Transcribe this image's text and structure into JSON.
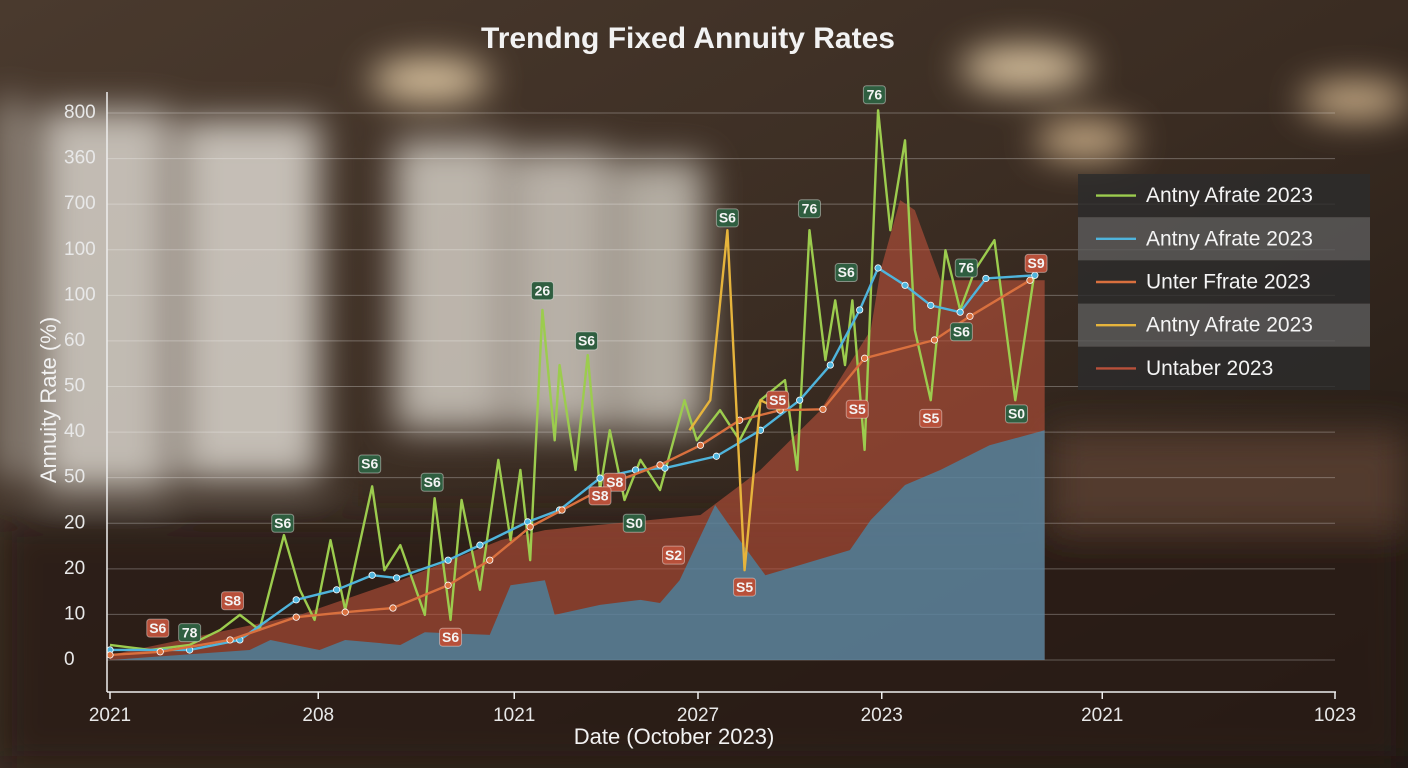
{
  "chart_data": {
    "type": "line",
    "title": "Trendng Fixed Annuity Rates",
    "x_label": "Date (October 2023)",
    "y_label": "Annuity Rate (%)",
    "xlim": [
      0,
      100
    ],
    "xticks": [
      {
        "value": 0,
        "label": "2021"
      },
      {
        "value": 17,
        "label": "208"
      },
      {
        "value": 33,
        "label": "1021"
      },
      {
        "value": 48,
        "label": "2027"
      },
      {
        "value": 63,
        "label": "2023"
      },
      {
        "value": 81,
        "label": "2021"
      },
      {
        "value": 100,
        "label": "1023"
      }
    ],
    "ylim": [
      0,
      12
    ],
    "yticks": [
      {
        "value": 0,
        "label": "0"
      },
      {
        "value": 1,
        "label": "10"
      },
      {
        "value": 2,
        "label": "20"
      },
      {
        "value": 3,
        "label": "20"
      },
      {
        "value": 4,
        "label": "50"
      },
      {
        "value": 5,
        "label": "40"
      },
      {
        "value": 6,
        "label": "50"
      },
      {
        "value": 7,
        "label": "60"
      },
      {
        "value": 8,
        "label": "100"
      },
      {
        "value": 9,
        "label": "100"
      },
      {
        "value": 10,
        "label": "700"
      },
      {
        "value": 11,
        "label": "360"
      },
      {
        "value": 12,
        "label": "800"
      }
    ],
    "grid": true,
    "legend": "upper right",
    "series": [
      {
        "name": "Antny Afrate 2023",
        "color": "#9ccc4e",
        "type": "line",
        "x": [
          0,
          3.3,
          6.5,
          9.0,
          10.6,
          12.2,
          14.2,
          15.5,
          16.7,
          18.0,
          19.2,
          21.4,
          22.4,
          23.7,
          25.7,
          26.5,
          27.8,
          28.7,
          30.2,
          31.7,
          32.7,
          33.5,
          34.3,
          35.3,
          36.3,
          36.7,
          38.0,
          39.0,
          40.0,
          40.8,
          42.0,
          43.3,
          44.9,
          46.9,
          47.9,
          49.8,
          51.4,
          53.1,
          55.1,
          56.1,
          57.1,
          58.4,
          59.2,
          60.0,
          60.6,
          61.6,
          62.7,
          63.7,
          64.9,
          65.7,
          67.0,
          68.2,
          69.4,
          70.6,
          72.2,
          73.9,
          75.5
        ],
        "values": [
          0.33,
          0.22,
          0.33,
          0.66,
          0.99,
          0.66,
          2.74,
          1.54,
          0.88,
          2.63,
          1.1,
          3.81,
          1.97,
          2.52,
          0.99,
          3.55,
          0.88,
          3.51,
          1.54,
          4.39,
          2.63,
          4.17,
          2.19,
          7.68,
          4.82,
          6.47,
          4.17,
          6.69,
          3.73,
          5.04,
          3.51,
          4.39,
          3.73,
          5.7,
          4.82,
          5.48,
          4.82,
          5.7,
          6.14,
          4.17,
          9.43,
          6.58,
          7.89,
          6.47,
          7.89,
          4.61,
          12.06,
          9.43,
          11.4,
          7.24,
          5.7,
          8.99,
          7.68,
          8.55,
          9.21,
          5.7,
          8.55
        ]
      },
      {
        "name": "Antny Afrate 2023",
        "color": "#4fb4dc",
        "type": "line",
        "markers": true,
        "x": [
          0,
          6.5,
          10.6,
          15.2,
          18.5,
          21.4,
          23.4,
          27.6,
          30.2,
          34.1,
          36.7,
          40.0,
          42.9,
          45.3,
          49.5,
          53.1,
          56.3,
          58.8,
          61.2,
          62.7,
          64.9,
          67.0,
          69.4,
          71.5,
          75.5
        ],
        "values": [
          0.22,
          0.22,
          0.44,
          1.32,
          1.54,
          1.86,
          1.8,
          2.19,
          2.52,
          3.03,
          3.29,
          3.99,
          4.17,
          4.21,
          4.47,
          5.04,
          5.7,
          6.47,
          7.68,
          8.6,
          8.22,
          7.78,
          7.63,
          8.37,
          8.44
        ]
      },
      {
        "name": "Unter Ffrate 2023",
        "color": "#d9703e",
        "type": "line",
        "markers": true,
        "x": [
          0,
          4.1,
          9.8,
          15.2,
          19.2,
          23.1,
          27.6,
          31.0,
          34.3,
          36.9,
          40.0,
          41.6,
          44.9,
          48.2,
          51.4,
          54.7,
          58.2,
          61.6,
          67.3,
          70.2,
          75.1
        ],
        "values": [
          0.11,
          0.18,
          0.44,
          0.94,
          1.05,
          1.14,
          1.64,
          2.19,
          2.92,
          3.29,
          3.73,
          3.95,
          4.28,
          4.71,
          5.26,
          5.48,
          5.5,
          6.62,
          7.02,
          7.54,
          8.33
        ]
      },
      {
        "name": "Antny Afrate 2023",
        "color": "#e6b43c",
        "type": "line",
        "x": [
          47.3,
          49.0,
          50.4,
          51.8,
          53.1,
          54.7
        ],
        "values": [
          5.04,
          5.7,
          9.43,
          1.97,
          5.7,
          5.48
        ]
      },
      {
        "name": "Untaber 2023",
        "color": "#b8503a",
        "type": "area",
        "x": [
          0,
          15.5,
          23.7,
          31.9,
          35.5,
          44.1,
          48.2,
          53.1,
          58.0,
          62.1,
          62.9,
          64.5,
          65.7,
          67.8,
          72.7,
          76.3
        ],
        "values": [
          0.11,
          0.99,
          1.75,
          2.63,
          2.85,
          3.07,
          3.18,
          4.17,
          5.48,
          7.24,
          8.55,
          10.09,
          9.87,
          8.33,
          8.33,
          8.33
        ]
      },
      {
        "color": "#3a98c4",
        "type": "area",
        "x": [
          0,
          11.4,
          13.1,
          17.1,
          19.2,
          23.7,
          25.7,
          31.0,
          32.7,
          35.5,
          36.3,
          40.0,
          43.3,
          44.9,
          46.5,
          49.4,
          51.4,
          53.5,
          56.3,
          60.4,
          62.1,
          64.9,
          67.8,
          71.8,
          76.3
        ],
        "values": [
          0,
          0.22,
          0.44,
          0.22,
          0.44,
          0.33,
          0.61,
          0.55,
          1.64,
          1.75,
          0.99,
          1.21,
          1.32,
          1.25,
          1.75,
          3.4,
          2.63,
          1.86,
          2.08,
          2.41,
          3.07,
          3.84,
          4.17,
          4.71,
          5.04
        ]
      }
    ],
    "annotations": [
      {
        "text": "76",
        "x": 62.4,
        "y": 12.4,
        "color": "#2f5e40"
      },
      {
        "text": "S6",
        "x": 50.4,
        "y": 9.7,
        "color": "#2f5e40"
      },
      {
        "text": "76",
        "x": 57.1,
        "y": 9.9,
        "color": "#2f5e40"
      },
      {
        "text": "26",
        "x": 35.3,
        "y": 8.1,
        "color": "#2f5e40"
      },
      {
        "text": "S6",
        "x": 38.9,
        "y": 7.0,
        "color": "#2f5e40"
      },
      {
        "text": "S6",
        "x": 60.1,
        "y": 8.5,
        "color": "#2f5e40"
      },
      {
        "text": "76",
        "x": 69.9,
        "y": 8.6,
        "color": "#2f5e40"
      },
      {
        "text": "S9",
        "x": 75.6,
        "y": 8.7,
        "color": "#b8503a"
      },
      {
        "text": "S6",
        "x": 69.5,
        "y": 7.2,
        "color": "#2f5e40"
      },
      {
        "text": "S0",
        "x": 74.0,
        "y": 5.4,
        "color": "#2f5e40"
      },
      {
        "text": "S5",
        "x": 67.0,
        "y": 5.3,
        "color": "#b8503a"
      },
      {
        "text": "S5",
        "x": 61.0,
        "y": 5.5,
        "color": "#b8503a"
      },
      {
        "text": "S5",
        "x": 54.5,
        "y": 5.7,
        "color": "#b8503a"
      },
      {
        "text": "S8",
        "x": 41.2,
        "y": 3.9,
        "color": "#b8503a"
      },
      {
        "text": "S8",
        "x": 40.0,
        "y": 3.6,
        "color": "#b8503a"
      },
      {
        "text": "S0",
        "x": 42.8,
        "y": 3.0,
        "color": "#2f5e40"
      },
      {
        "text": "S2",
        "x": 46.0,
        "y": 2.3,
        "color": "#b8503a"
      },
      {
        "text": "S5",
        "x": 51.8,
        "y": 1.6,
        "color": "#b8503a"
      },
      {
        "text": "S6",
        "x": 21.2,
        "y": 4.3,
        "color": "#2f5e40"
      },
      {
        "text": "S6",
        "x": 26.3,
        "y": 3.9,
        "color": "#2f5e40"
      },
      {
        "text": "S6",
        "x": 14.1,
        "y": 3.0,
        "color": "#2f5e40"
      },
      {
        "text": "S8",
        "x": 10.0,
        "y": 1.3,
        "color": "#b8503a"
      },
      {
        "text": "S6",
        "x": 3.9,
        "y": 0.7,
        "color": "#b8503a"
      },
      {
        "text": "78",
        "x": 6.5,
        "y": 0.6,
        "color": "#2f5e40"
      },
      {
        "text": "S6",
        "x": 27.8,
        "y": 0.5,
        "color": "#b8503a"
      }
    ]
  }
}
